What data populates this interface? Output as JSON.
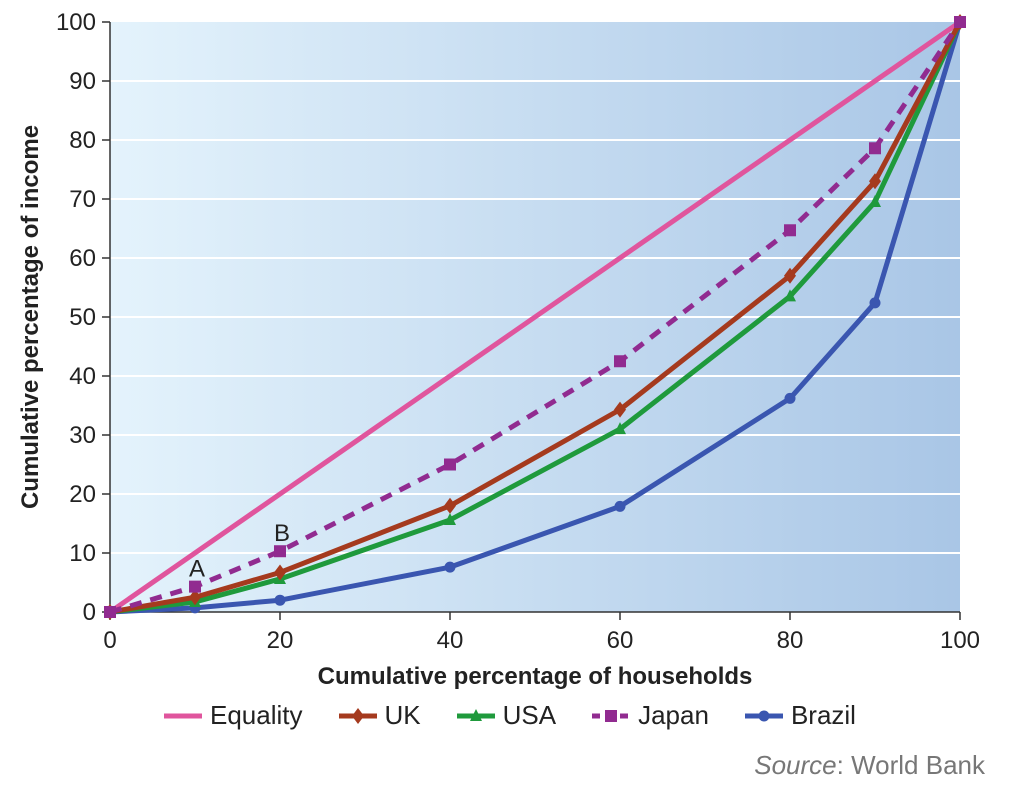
{
  "chart_data": {
    "type": "line",
    "title": "",
    "xlabel": "Cumulative percentage of households",
    "ylabel": "Cumulative percentage of income",
    "xlim": [
      0,
      100
    ],
    "ylim": [
      0,
      100
    ],
    "xticks": [
      0,
      20,
      40,
      60,
      80,
      100
    ],
    "yticks": [
      0,
      10,
      20,
      30,
      40,
      50,
      60,
      70,
      80,
      90,
      100
    ],
    "grid": "horizontal",
    "legend_position": "bottom",
    "series": [
      {
        "name": "Equality",
        "color": "#e0559d",
        "style": "solid",
        "marker": "none",
        "x": [
          0,
          100
        ],
        "y": [
          0,
          100
        ]
      },
      {
        "name": "UK",
        "color": "#a53a1e",
        "style": "solid",
        "marker": "diamond",
        "x": [
          0,
          10,
          20,
          40,
          60,
          80,
          90,
          100
        ],
        "y": [
          0,
          2.5,
          6.7,
          18,
          34.3,
          57,
          73,
          100
        ]
      },
      {
        "name": "USA",
        "color": "#1f9a3c",
        "style": "solid",
        "marker": "triangle",
        "x": [
          0,
          10,
          20,
          40,
          60,
          80,
          90,
          100
        ],
        "y": [
          0,
          1.7,
          5.6,
          15.6,
          31,
          53.5,
          69.5,
          100
        ]
      },
      {
        "name": "Japan",
        "color": "#912b90",
        "style": "dashed",
        "marker": "square",
        "x": [
          0,
          10,
          20,
          40,
          60,
          80,
          90,
          100
        ],
        "y": [
          0,
          4.3,
          10.3,
          25,
          42.5,
          64.7,
          78.6,
          100
        ]
      },
      {
        "name": "Brazil",
        "color": "#3a56b0",
        "style": "solid",
        "marker": "circle",
        "x": [
          0,
          10,
          20,
          40,
          60,
          80,
          90,
          100
        ],
        "y": [
          0,
          0.7,
          2.0,
          7.6,
          17.9,
          36.2,
          52.4,
          100
        ]
      }
    ],
    "annotations": [
      {
        "text": "A",
        "x": 10,
        "y": 4.3
      },
      {
        "text": "B",
        "x": 20,
        "y": 10.3
      }
    ]
  },
  "source": {
    "label": "Source",
    "value": ": World Bank"
  }
}
